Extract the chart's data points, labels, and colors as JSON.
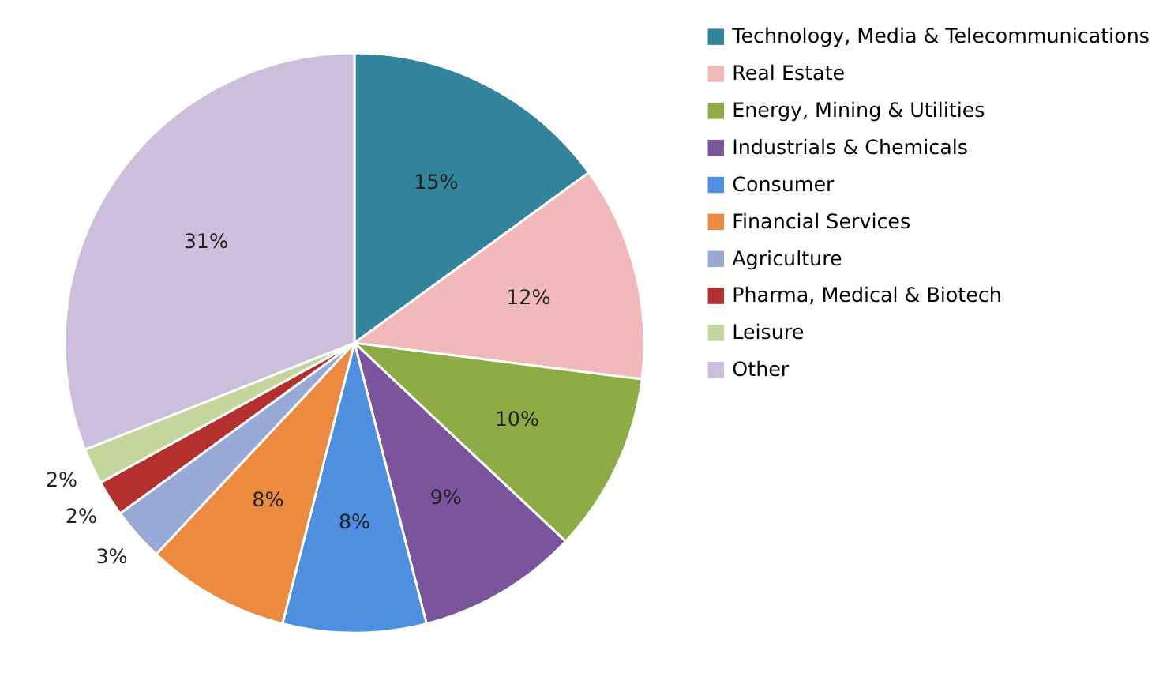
{
  "chart_data": {
    "type": "pie",
    "categories": [
      "Technology, Media & Telecommunications",
      "Real Estate",
      "Energy, Mining & Utilities",
      "Industrials & Chemicals",
      "Consumer",
      "Financial Services",
      "Agriculture",
      "Pharma, Medical & Biotech",
      "Leisure",
      "Other"
    ],
    "values": [
      15,
      12,
      10,
      9,
      8,
      8,
      3,
      2,
      2,
      31
    ],
    "colors": [
      "#31849b",
      "#f2b9ba",
      "#8eac45",
      "#7a549c",
      "#4f8fe0",
      "#ec8b3f",
      "#98a9d6",
      "#b3302f",
      "#c3d69b",
      "#cdbfdc"
    ],
    "value_labels": [
      "15%",
      "12%",
      "10%",
      "9%",
      "8%",
      "8%",
      "3%",
      "2%",
      "2%",
      "31%"
    ],
    "legend": "right"
  }
}
